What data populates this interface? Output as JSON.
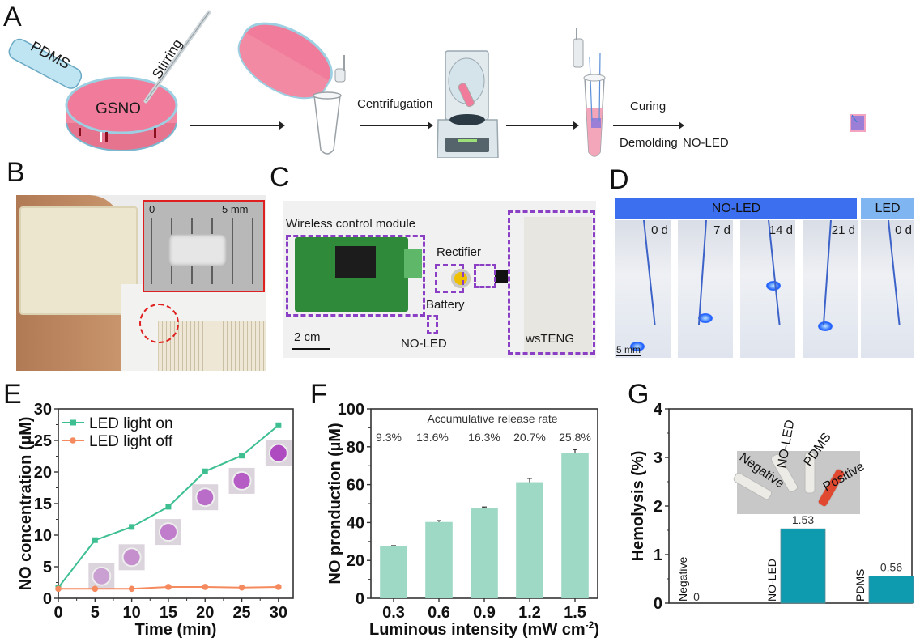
{
  "panels": {
    "A": {
      "letter": "A",
      "labels": {
        "pdms": "PDMS",
        "stirring": "Stirring",
        "gsno": "GSNO",
        "centrifugation": "Centrifugation",
        "curing": "Curing",
        "demolding": "Demolding",
        "product": "NO-LED"
      },
      "colors": {
        "pink": "#f07b9a",
        "tube_blue": "#bfe4f2",
        "purple": "#9b7fd6"
      }
    },
    "B": {
      "letter": "B",
      "inset_scale_start": "0",
      "inset_scale_end": "5 mm",
      "colors": {
        "inset_border": "#e02020",
        "circle": "#e02020"
      }
    },
    "C": {
      "letter": "C",
      "labels": {
        "module": "Wireless control module",
        "rectifier": "Rectifier",
        "battery": "Battery",
        "noled": "NO-LED",
        "wsteng": "wsTENG",
        "scale": "2 cm"
      },
      "colors": {
        "dash": "#8a3fc4",
        "pcb": "#2f8a3a"
      }
    },
    "D": {
      "letter": "D",
      "header_noled": "NO-LED",
      "header_led": "LED",
      "scale": "5 mm",
      "vials": [
        {
          "label": "0 d"
        },
        {
          "label": "7 d"
        },
        {
          "label": "14 d"
        },
        {
          "label": "21 d"
        },
        {
          "label": "0 d"
        }
      ],
      "colors": {
        "noled_header": "#3c6ff0",
        "led_header": "#7fb6f2"
      }
    },
    "E": {
      "letter": "E"
    },
    "F": {
      "letter": "F"
    },
    "G": {
      "letter": "G"
    }
  },
  "chart_data": [
    {
      "id": "E",
      "type": "line",
      "title": "",
      "xlabel": "Time (min)",
      "ylabel": "NO concentration (µM)",
      "xlim": [
        0,
        32
      ],
      "ylim": [
        0,
        30
      ],
      "xticks": [
        0,
        5,
        10,
        15,
        20,
        25,
        30
      ],
      "yticks": [
        0,
        5,
        10,
        15,
        20,
        25,
        30
      ],
      "x": [
        0,
        5,
        10,
        15,
        20,
        25,
        30
      ],
      "series": [
        {
          "name": "LED light on",
          "marker": "square",
          "color": "#3dbf91",
          "values": [
            1.7,
            9.2,
            11.3,
            14.5,
            20.1,
            22.6,
            27.4
          ]
        },
        {
          "name": "LED light off",
          "marker": "circle",
          "color": "#f58a5e",
          "values": [
            1.5,
            1.5,
            1.5,
            1.8,
            1.8,
            1.7,
            1.8
          ]
        }
      ],
      "legend": "top-left",
      "grid": false,
      "insets": "well photos at 5–30 min, increasingly magenta"
    },
    {
      "id": "F",
      "type": "bar",
      "title": "",
      "xlabel": "Luminous intensity (mW cm⁻²)",
      "xlabel_main": "Luminous intensity (mW cm",
      "xlabel_sup": "-2",
      "xlabel_end": ")",
      "ylabel": "NO pronduction (µM)",
      "ylim": [
        0,
        100
      ],
      "yticks": [
        0,
        20,
        40,
        60,
        80,
        100
      ],
      "categories": [
        "0.3",
        "0.6",
        "0.9",
        "1.2",
        "1.5"
      ],
      "values": [
        27.5,
        40.3,
        47.8,
        61.3,
        76.5
      ],
      "errors": [
        0.3,
        0.7,
        0.4,
        2.0,
        2.0
      ],
      "color": "#9ed9c5",
      "annotation_title": "Accumulative release rate",
      "annotations": [
        "9.3%",
        "13.6%",
        "16.3%",
        "20.7%",
        "25.8%"
      ],
      "grid": false
    },
    {
      "id": "G",
      "type": "bar",
      "title": "",
      "xlabel": "",
      "ylabel": "Hemolysis (%)",
      "ylim": [
        0,
        4
      ],
      "yticks": [
        0,
        1,
        2,
        3,
        4
      ],
      "categories": [
        "Negative",
        "NO-LED",
        "PDMS"
      ],
      "values": [
        0,
        1.53,
        0.56
      ],
      "value_labels": [
        "0",
        "1.53",
        "0.56"
      ],
      "color": "#0e9bb0",
      "inset_labels": [
        "Negative",
        "NO-LED",
        "PDMS",
        "Positive"
      ],
      "grid": false
    }
  ]
}
